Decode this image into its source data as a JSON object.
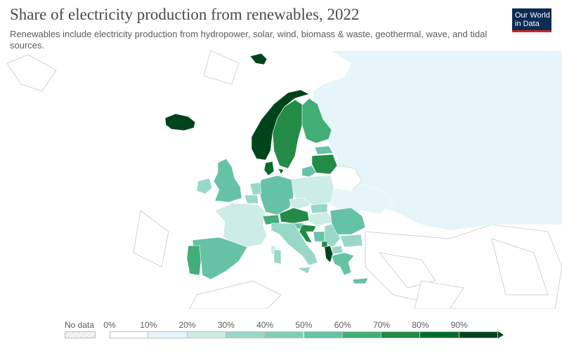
{
  "header": {
    "title": "Share of electricity production from renewables, 2022",
    "subtitle": "Renewables include electricity production from hydropower, solar, wind, biomass & waste, geothermal, wave, and tidal sources."
  },
  "logo": {
    "line1": "Our World",
    "line2": "in Data",
    "brand_color": "#0c2b55",
    "accent": "#ce261e"
  },
  "legend": {
    "no_data_label": "No data",
    "ticks": [
      "0%",
      "10%",
      "20%",
      "30%",
      "40%",
      "50%",
      "60%",
      "70%",
      "80%",
      "90%"
    ],
    "colors": [
      "#ffffff",
      "#e5f5f9",
      "#ccece6",
      "#99d8c9",
      "#82cdb5",
      "#66c2a4",
      "#41ae76",
      "#238b45",
      "#006d2c",
      "#00441b"
    ]
  },
  "map_data": {
    "colors": {
      "Russia": "#e5f5f9",
      "Iceland": "#00441b",
      "Norway": "#00441b",
      "Sweden": "#238b45",
      "Finland": "#41ae76",
      "Svalbard": "#00441b",
      "Estonia": "#66c2a4",
      "Latvia": "#238b45",
      "Lithuania": "#66c2a4",
      "Belarus": "#ffffff",
      "Ukraine": "#e5f5f9",
      "Poland": "#ccece6",
      "Germany": "#66c2a4",
      "Denmark": "#006d2c",
      "Netherlands": "#99d8c9",
      "Belgium": "#99d8c9",
      "France": "#ccece6",
      "UK": "#66c2a4",
      "Ireland": "#99d8c9",
      "Spain": "#66c2a4",
      "Portugal": "#41ae76",
      "Italy": "#99d8c9",
      "Switzerland": "#41ae76",
      "Austria": "#238b45",
      "Czechia": "#ccece6",
      "Slovakia": "#99d8c9",
      "Hungary": "#ccece6",
      "Romania": "#66c2a4",
      "Bulgaria": "#99d8c9",
      "Greece": "#66c2a4",
      "Croatia": "#238b45",
      "Slovenia": "#66c2a4",
      "Bosnia": "#66c2a4",
      "Serbia": "#99d8c9",
      "Montenegro": "#238b45",
      "Albania": "#00441b",
      "North Macedonia": "#99d8c9",
      "Moldova": "#ffffff",
      "Cyprus": "#66c2a4",
      "Sardinia": "#99d8c9",
      "Sicily": "#99d8c9",
      "Corsica": "#ccece6"
    }
  }
}
